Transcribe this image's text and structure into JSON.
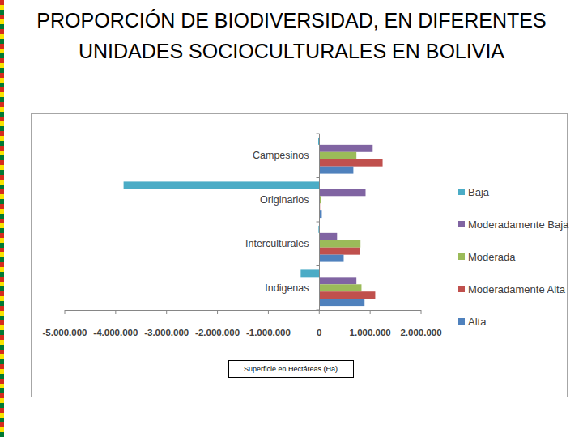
{
  "chart_data": {
    "type": "bar",
    "orientation": "horizontal",
    "title": "PROPORCIÓN DE BIODIVERSIDAD, EN DIFERENTES UNIDADES SOCIOCULTURALES EN BOLIVIA",
    "x_label": "Superficie en Hectáreas (Ha)",
    "categories": [
      "Campesinos",
      "Originarios",
      "Interculturales",
      "Indigenas"
    ],
    "series": [
      {
        "name": "Baja",
        "color": "#4bacc6",
        "values": [
          -20000,
          -3845000,
          -15000,
          -365000
        ]
      },
      {
        "name": "Moderadamente Baja",
        "color": "#8064a2",
        "values": [
          1050000,
          910000,
          350000,
          730000
        ]
      },
      {
        "name": "Moderada",
        "color": "#9bbb59",
        "values": [
          730000,
          30000,
          810000,
          830000
        ]
      },
      {
        "name": "Moderadamente Alta",
        "color": "#c0504d",
        "values": [
          1245000,
          15000,
          800000,
          1100000
        ]
      },
      {
        "name": "Alta",
        "color": "#4f81bd",
        "values": [
          670000,
          50000,
          480000,
          890000
        ]
      }
    ],
    "xlim": [
      -5000000,
      2000000
    ],
    "xticks": [
      {
        "value": -5000000,
        "label": "-5.000.000"
      },
      {
        "value": -4000000,
        "label": "-4.000.000"
      },
      {
        "value": -3000000,
        "label": "-3.000.000"
      },
      {
        "value": -2000000,
        "label": "-2.000.000"
      },
      {
        "value": -1000000,
        "label": "-1.000.000"
      },
      0,
      {
        "value": 1000000,
        "label": "1.000.000"
      },
      {
        "value": 2000000,
        "label": "2.000.000"
      }
    ],
    "grid": false,
    "legend": "right"
  }
}
